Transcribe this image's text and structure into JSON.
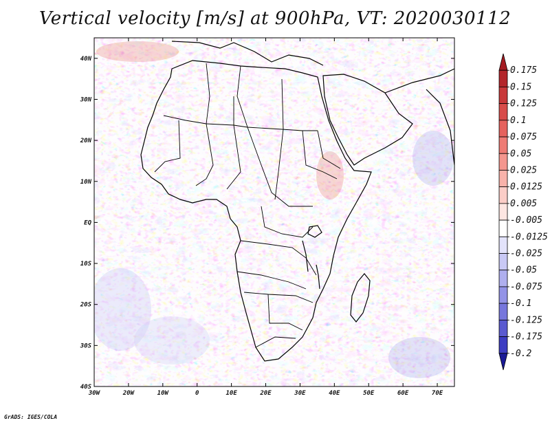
{
  "map": {
    "title": "Vertical velocity [m/s] at 900hPa, VT: 2020030112",
    "credit": "GrADS: IGES/COLA",
    "lon_range": [
      -30,
      75
    ],
    "lat_range": [
      -40,
      45
    ],
    "lat_ticks": [
      {
        "value": 40,
        "label": "40N"
      },
      {
        "value": 30,
        "label": "30N"
      },
      {
        "value": 20,
        "label": "20N"
      },
      {
        "value": 10,
        "label": "10N"
      },
      {
        "value": 0,
        "label": "EQ"
      },
      {
        "value": -10,
        "label": "10S"
      },
      {
        "value": -20,
        "label": "20S"
      },
      {
        "value": -30,
        "label": "30S"
      },
      {
        "value": -40,
        "label": "40S"
      }
    ],
    "lon_ticks": [
      {
        "value": -30,
        "label": "30W"
      },
      {
        "value": -20,
        "label": "20W"
      },
      {
        "value": -10,
        "label": "10W"
      },
      {
        "value": 0,
        "label": "0"
      },
      {
        "value": 10,
        "label": "10E"
      },
      {
        "value": 20,
        "label": "20E"
      },
      {
        "value": 30,
        "label": "30E"
      },
      {
        "value": 40,
        "label": "40E"
      },
      {
        "value": 50,
        "label": "50E"
      },
      {
        "value": 60,
        "label": "60E"
      },
      {
        "value": 70,
        "label": "70E"
      }
    ]
  },
  "colorbar": {
    "levels": [
      {
        "label": "0.175",
        "color": "#b3262b"
      },
      {
        "label": "0.15",
        "color": "#c8383a"
      },
      {
        "label": "0.125",
        "color": "#d84c4a"
      },
      {
        "label": "0.1",
        "color": "#e5625d"
      },
      {
        "label": "0.075",
        "color": "#ee7b74"
      },
      {
        "label": "0.05",
        "color": "#f4968e"
      },
      {
        "label": "0.025",
        "color": "#f8b2aa"
      },
      {
        "label": "0.0125",
        "color": "#fbcdc7"
      },
      {
        "label": "0.005",
        "color": "#fde6e2"
      },
      {
        "label": "-0.005",
        "color": "#ffffff"
      },
      {
        "label": "-0.0125",
        "color": "#e3e3fb"
      },
      {
        "label": "-0.025",
        "color": "#c9c9f5"
      },
      {
        "label": "-0.05",
        "color": "#afafee"
      },
      {
        "label": "-0.075",
        "color": "#9393e6"
      },
      {
        "label": "-0.1",
        "color": "#7777dc"
      },
      {
        "label": "-0.125",
        "color": "#5a5ad0"
      },
      {
        "label": "-0.175",
        "color": "#3d3dc2"
      },
      {
        "label": "-0.2",
        "color": "#2020a8"
      }
    ],
    "top_color": "#a51c22",
    "bottom_color": "#1a1a96"
  }
}
